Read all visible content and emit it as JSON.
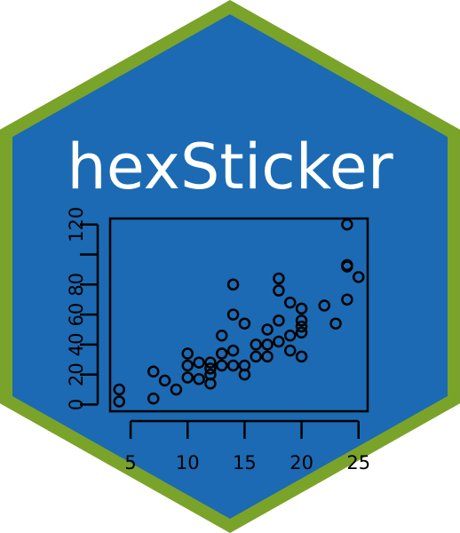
{
  "sticker": {
    "title": "hexSticker",
    "fill_color": "#1b6ab3",
    "border_color": "#7aa32a",
    "text_color": "#ffffff"
  },
  "chart_data": {
    "type": "scatter",
    "title": "",
    "xlabel": "",
    "ylabel": "",
    "xlim": [
      3.2,
      25.8
    ],
    "ylim": [
      -4.5,
      124
    ],
    "x_ticks": [
      5,
      10,
      15,
      20,
      25
    ],
    "x_tick_labels": [
      "5",
      "10",
      "15",
      "20",
      "25"
    ],
    "y_ticks": [
      0,
      20,
      40,
      60,
      80,
      120
    ],
    "y_tick_labels": [
      "0",
      "20",
      "40",
      "60",
      "80",
      "120"
    ],
    "y_tick_marks": [
      0,
      20,
      40,
      60,
      80,
      100,
      120
    ],
    "grid": false,
    "marker": "open-circle",
    "x": [
      4,
      4,
      7,
      7,
      8,
      9,
      10,
      10,
      10,
      11,
      11,
      12,
      12,
      12,
      12,
      13,
      13,
      13,
      13,
      14,
      14,
      14,
      14,
      15,
      15,
      15,
      16,
      16,
      17,
      17,
      17,
      18,
      18,
      18,
      18,
      19,
      19,
      19,
      20,
      20,
      20,
      20,
      20,
      22,
      23,
      24,
      24,
      24,
      24,
      25
    ],
    "y": [
      2,
      10,
      4,
      22,
      16,
      10,
      18,
      26,
      34,
      17,
      28,
      14,
      20,
      24,
      28,
      26,
      34,
      34,
      46,
      26,
      36,
      60,
      80,
      20,
      26,
      54,
      32,
      40,
      32,
      40,
      50,
      42,
      56,
      76,
      84,
      36,
      46,
      68,
      32,
      48,
      52,
      56,
      64,
      66,
      54,
      70,
      92,
      93,
      120,
      85
    ]
  }
}
